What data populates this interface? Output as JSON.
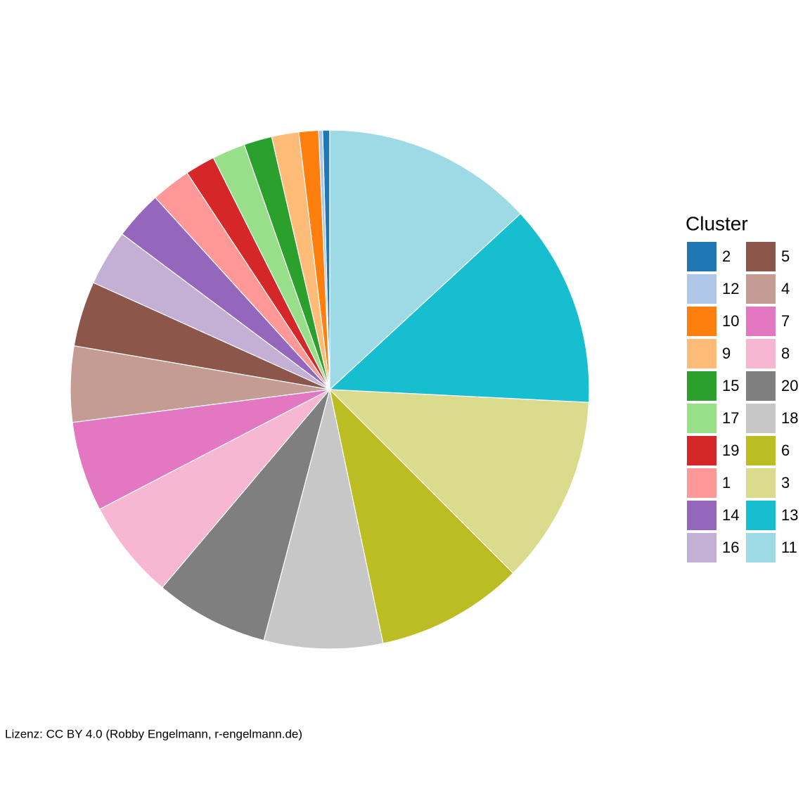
{
  "chart_data": {
    "type": "pie",
    "legend_title": "Cluster",
    "caption": "Lizenz: CC BY 4.0 (Robby Engelmann, r-engelmann.de)",
    "categories": [
      "2",
      "12",
      "10",
      "9",
      "15",
      "17",
      "19",
      "1",
      "14",
      "16",
      "5",
      "4",
      "7",
      "8",
      "20",
      "18",
      "6",
      "3",
      "13",
      "11"
    ],
    "values": [
      0.44,
      0.25,
      1.22,
      1.69,
      1.75,
      2.06,
      1.86,
      2.47,
      3.03,
      3.47,
      4.06,
      4.72,
      5.61,
      6.19,
      7.08,
      7.39,
      9.19,
      11.72,
      12.64,
      13.14
    ],
    "colors": [
      "#1f77b4",
      "#aec7e8",
      "#ff7f0e",
      "#ffbb78",
      "#2ca02c",
      "#98df8a",
      "#d62728",
      "#ff9896",
      "#9467bd",
      "#c5b0d5",
      "#8c564b",
      "#c49c94",
      "#e377c2",
      "#f7b6d2",
      "#7f7f7f",
      "#c7c7c7",
      "#bcbd22",
      "#dbdb8d",
      "#17becf",
      "#9edae5"
    ],
    "direction": "counterclockwise",
    "legend_position": "right"
  }
}
